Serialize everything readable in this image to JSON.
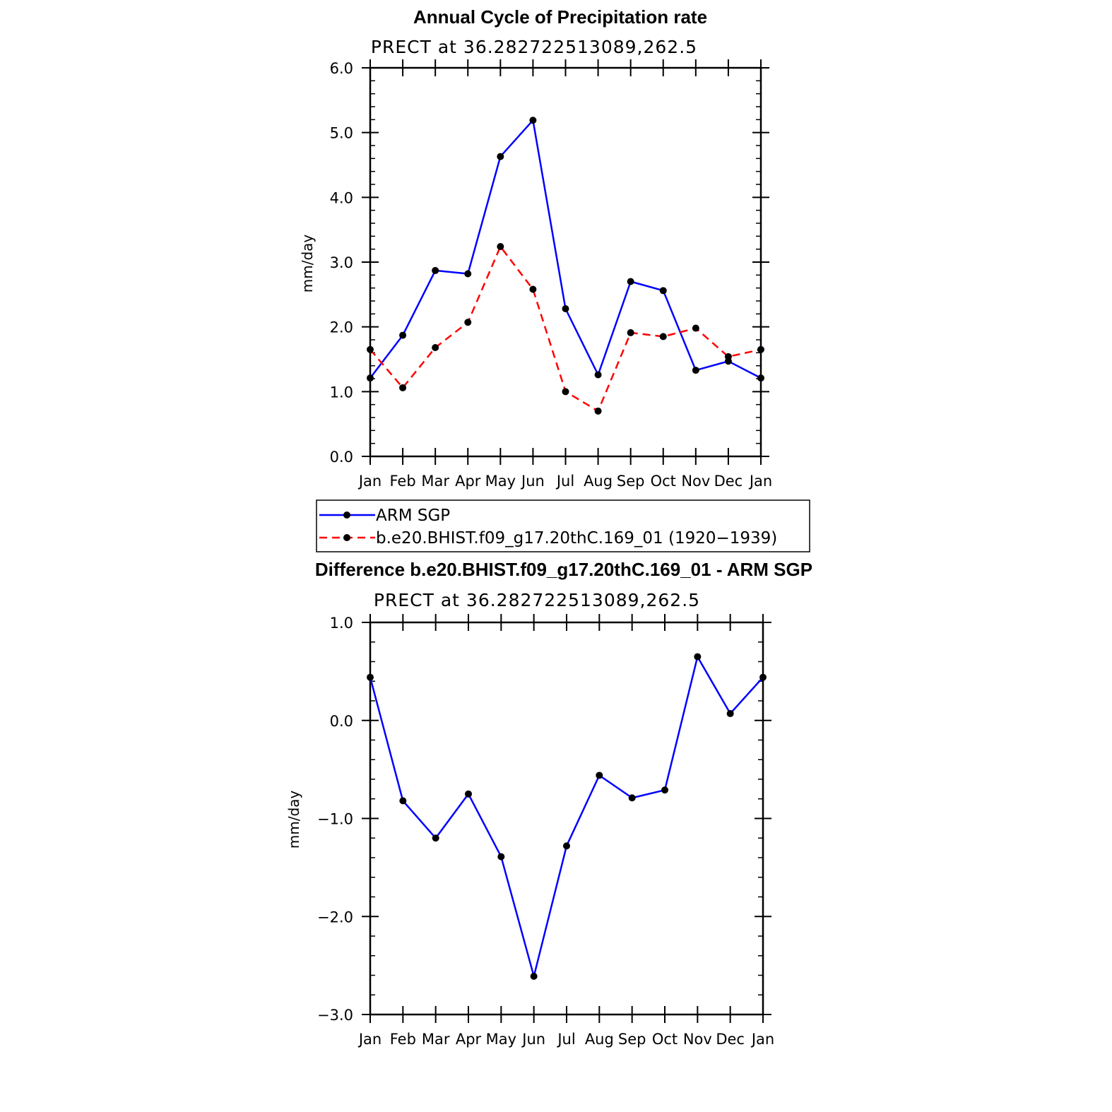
{
  "chart_data": [
    {
      "type": "line",
      "title": "Annual Cycle of Precipitation rate",
      "subtitle": "PRECT at 36.282722513089,262.5",
      "ylabel": "mm/day",
      "xlabel": "",
      "categories": [
        "Jan",
        "Feb",
        "Mar",
        "Apr",
        "May",
        "Jun",
        "Jul",
        "Aug",
        "Sep",
        "Oct",
        "Nov",
        "Dec",
        "Jan"
      ],
      "ylim": [
        0.0,
        6.0
      ],
      "yticks": [
        "0.0",
        "1.0",
        "2.0",
        "3.0",
        "4.0",
        "5.0",
        "6.0"
      ],
      "series": [
        {
          "name": "ARM SGP",
          "color": "#0000ff",
          "dash": "solid",
          "values": [
            1.21,
            1.87,
            2.87,
            2.82,
            4.63,
            5.19,
            2.28,
            1.26,
            2.7,
            2.56,
            1.33,
            1.47,
            1.21
          ]
        },
        {
          "name": "b.e20.BHIST.f09_g17.20thC.169_01 (1920-1939)",
          "color": "#ff0000",
          "dash": "dashed",
          "values": [
            1.65,
            1.06,
            1.68,
            2.07,
            3.24,
            2.58,
            1.0,
            0.7,
            1.91,
            1.85,
            1.98,
            1.54,
            1.65
          ]
        }
      ],
      "legend": {
        "position": "below",
        "entries": [
          "ARM SGP",
          "b.e20.BHIST.f09_g17.20thC.169_01 (1920−1939)"
        ]
      }
    },
    {
      "type": "line",
      "title": "Difference b.e20.BHIST.f09_g17.20thC.169_01 - ARM SGP",
      "subtitle": "PRECT at 36.282722513089,262.5",
      "ylabel": "mm/day",
      "xlabel": "",
      "categories": [
        "Jan",
        "Feb",
        "Mar",
        "Apr",
        "May",
        "Jun",
        "Jul",
        "Aug",
        "Sep",
        "Oct",
        "Nov",
        "Dec",
        "Jan"
      ],
      "ylim": [
        -3.0,
        1.0
      ],
      "yticks": [
        "−3.0",
        "−2.0",
        "−1.0",
        "0.0",
        "1.0"
      ],
      "series": [
        {
          "name": "Difference",
          "color": "#0000ff",
          "dash": "solid",
          "values": [
            0.44,
            -0.82,
            -1.2,
            -0.75,
            -1.39,
            -2.61,
            -1.28,
            -0.56,
            -0.79,
            -0.71,
            0.65,
            0.07,
            0.44
          ]
        }
      ]
    }
  ]
}
